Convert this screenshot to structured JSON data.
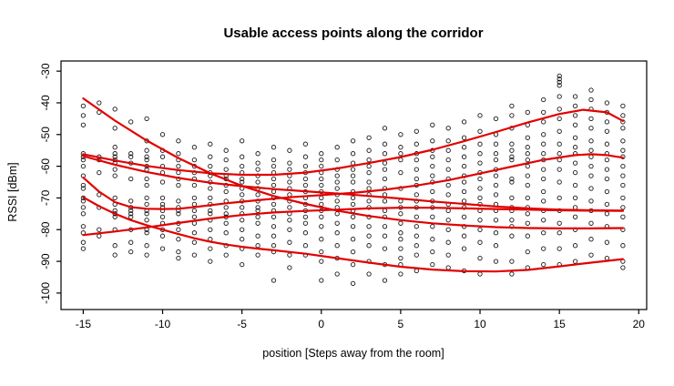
{
  "title": "Usable access points along the corridor",
  "chart_data": {
    "type": "scatter",
    "title": "Usable access points along the corridor",
    "xlabel": "position [Steps away from the room]",
    "ylabel": "RSSI [dBm]",
    "xlim": [
      -16.4,
      20.5
    ],
    "ylim": [
      -105.2,
      -26.8
    ],
    "xticks": [
      -15,
      -10,
      -5,
      0,
      5,
      10,
      15,
      20
    ],
    "yticks": [
      -100,
      -90,
      -80,
      -70,
      -60,
      -50,
      -40,
      -30
    ],
    "grid": false,
    "legend": "none",
    "point_color": "#1a1a1a",
    "line_color": "#e10000",
    "box_color": "#000000",
    "scatter": [
      {
        "x": -15,
        "ys": [
          -41,
          -44,
          -47,
          -56,
          -57,
          -58,
          -60,
          -63,
          -66,
          -67,
          -70,
          -71,
          -73,
          -75,
          -79,
          -81,
          -84,
          -86
        ]
      },
      {
        "x": -14,
        "ys": [
          -40,
          -43,
          -57,
          -58,
          -62,
          -69,
          -73,
          -80,
          -82
        ]
      },
      {
        "x": -13,
        "ys": [
          -42,
          -48,
          -54,
          -56,
          -57,
          -58,
          -59,
          -61,
          -63,
          -70,
          -72,
          -74,
          -75,
          -76,
          -80,
          -85,
          -88
        ]
      },
      {
        "x": -12,
        "ys": [
          -46,
          -56,
          -57,
          -59,
          -64,
          -71,
          -73,
          -74,
          -75,
          -76,
          -80,
          -84,
          -87
        ]
      },
      {
        "x": -11,
        "ys": [
          -45,
          -52,
          -55,
          -57,
          -58,
          -60,
          -61,
          -64,
          -66,
          -70,
          -72,
          -74,
          -75,
          -77,
          -80,
          -81,
          -85,
          -88
        ]
      },
      {
        "x": -10,
        "ys": [
          -50,
          -55,
          -57,
          -60,
          -62,
          -65,
          -70,
          -72,
          -73,
          -74,
          -76,
          -78,
          -80,
          -82,
          -86
        ]
      },
      {
        "x": -9,
        "ys": [
          -52,
          -56,
          -58,
          -60,
          -62,
          -64,
          -66,
          -71,
          -73,
          -74,
          -75,
          -78,
          -80,
          -83,
          -87,
          -89
        ]
      },
      {
        "x": -8,
        "ys": [
          -54,
          -58,
          -60,
          -62,
          -64,
          -66,
          -70,
          -72,
          -74,
          -76,
          -78,
          -81,
          -84,
          -88
        ]
      },
      {
        "x": -7,
        "ys": [
          -53,
          -57,
          -60,
          -62,
          -63,
          -65,
          -67,
          -70,
          -72,
          -74,
          -75,
          -77,
          -80,
          -83,
          -86,
          -90
        ]
      },
      {
        "x": -6,
        "ys": [
          -55,
          -58,
          -61,
          -63,
          -64,
          -66,
          -68,
          -71,
          -73,
          -75,
          -76,
          -78,
          -81,
          -85,
          -88
        ]
      },
      {
        "x": -5,
        "ys": [
          -52,
          -57,
          -60,
          -62,
          -64,
          -65,
          -67,
          -69,
          -71,
          -73,
          -75,
          -77,
          -80,
          -83,
          -86,
          -91
        ]
      },
      {
        "x": -4,
        "ys": [
          -56,
          -59,
          -61,
          -63,
          -65,
          -67,
          -69,
          -71,
          -73,
          -74,
          -76,
          -78,
          -82,
          -85,
          -88
        ]
      },
      {
        "x": -3,
        "ys": [
          -54,
          -58,
          -60,
          -62,
          -64,
          -66,
          -68,
          -70,
          -72,
          -74,
          -76,
          -79,
          -82,
          -85,
          -87,
          -96
        ]
      },
      {
        "x": -2,
        "ys": [
          -55,
          -59,
          -61,
          -63,
          -65,
          -67,
          -69,
          -71,
          -73,
          -75,
          -77,
          -80,
          -84,
          -88,
          -92
        ]
      },
      {
        "x": -1,
        "ys": [
          -53,
          -57,
          -60,
          -62,
          -64,
          -66,
          -68,
          -70,
          -72,
          -74,
          -76,
          -78,
          -81,
          -85,
          -88
        ]
      },
      {
        "x": 0,
        "ys": [
          -56,
          -58,
          -60,
          -62,
          -64,
          -66,
          -68,
          -70,
          -72,
          -74,
          -76,
          -79,
          -83,
          -87,
          -90,
          -96
        ]
      },
      {
        "x": 1,
        "ys": [
          -54,
          -58,
          -61,
          -63,
          -65,
          -67,
          -69,
          -71,
          -73,
          -75,
          -78,
          -81,
          -85,
          -89,
          -94
        ]
      },
      {
        "x": 2,
        "ys": [
          -52,
          -56,
          -59,
          -61,
          -63,
          -65,
          -68,
          -70,
          -72,
          -74,
          -76,
          -79,
          -83,
          -87,
          -91,
          -97
        ]
      },
      {
        "x": 3,
        "ys": [
          -51,
          -55,
          -58,
          -60,
          -62,
          -65,
          -67,
          -69,
          -71,
          -73,
          -76,
          -79,
          -82,
          -85,
          -90,
          -94
        ]
      },
      {
        "x": 4,
        "ys": [
          -48,
          -53,
          -56,
          -59,
          -61,
          -64,
          -67,
          -69,
          -71,
          -74,
          -76,
          -79,
          -82,
          -86,
          -91,
          -96
        ]
      },
      {
        "x": 5,
        "ys": [
          -50,
          -54,
          -56,
          -58,
          -62,
          -67,
          -71,
          -73,
          -75,
          -78,
          -81,
          -83,
          -86,
          -89,
          -91,
          -94
        ]
      },
      {
        "x": 6,
        "ys": [
          -49,
          -53,
          -56,
          -58,
          -61,
          -64,
          -66,
          -69,
          -71,
          -73,
          -76,
          -79,
          -82,
          -85,
          -88,
          -93
        ]
      },
      {
        "x": 7,
        "ys": [
          -47,
          -52,
          -55,
          -57,
          -60,
          -63,
          -65,
          -68,
          -71,
          -73,
          -76,
          -79,
          -83,
          -87,
          -91
        ]
      },
      {
        "x": 8,
        "ys": [
          -48,
          -52,
          -55,
          -58,
          -61,
          -64,
          -66,
          -69,
          -72,
          -74,
          -77,
          -80,
          -84,
          -88,
          -92
        ]
      },
      {
        "x": 9,
        "ys": [
          -46,
          -51,
          -54,
          -57,
          -60,
          -63,
          -65,
          -68,
          -71,
          -73,
          -76,
          -79,
          -82,
          -86,
          -93
        ]
      },
      {
        "x": 10,
        "ys": [
          -44,
          -49,
          -53,
          -56,
          -59,
          -62,
          -64,
          -67,
          -70,
          -72,
          -74,
          -77,
          -80,
          -84,
          -89,
          -94
        ]
      },
      {
        "x": 11,
        "ys": [
          -45,
          -50,
          -53,
          -56,
          -58,
          -61,
          -63,
          -66,
          -69,
          -72,
          -74,
          -77,
          -81,
          -85,
          -90
        ]
      },
      {
        "x": 12,
        "ys": [
          -41,
          -44,
          -48,
          -53,
          -55,
          -57,
          -58,
          -64,
          -65,
          -70,
          -73,
          -74,
          -77,
          -79,
          -82,
          -90,
          -94
        ]
      },
      {
        "x": 13,
        "ys": [
          -43,
          -47,
          -51,
          -54,
          -56,
          -58,
          -60,
          -63,
          -66,
          -70,
          -73,
          -75,
          -78,
          -82,
          -87,
          -92
        ]
      },
      {
        "x": 14,
        "ys": [
          -39,
          -43,
          -46,
          -50,
          -53,
          -56,
          -58,
          -61,
          -64,
          -68,
          -71,
          -74,
          -77,
          -81,
          -86,
          -91
        ]
      },
      {
        "x": 15,
        "ys": [
          -31.5,
          -32.5,
          -33.5,
          -34.5,
          -38,
          -42,
          -45,
          -49,
          -53,
          -56,
          -58,
          -61,
          -65,
          -70,
          -74,
          -78,
          -81,
          -86,
          -91
        ]
      },
      {
        "x": 16,
        "ys": [
          -38,
          -41,
          -44,
          -47,
          -51,
          -54,
          -56,
          -59,
          -62,
          -66,
          -70,
          -73,
          -76,
          -80,
          -85,
          -90
        ]
      },
      {
        "x": 17,
        "ys": [
          -36,
          -39,
          -42,
          -45,
          -48,
          -52,
          -55,
          -57,
          -60,
          -63,
          -67,
          -71,
          -74,
          -78,
          -83,
          -88
        ]
      },
      {
        "x": 18,
        "ys": [
          -40,
          -43,
          -46,
          -49,
          -53,
          -56,
          -58,
          -61,
          -64,
          -68,
          -72,
          -75,
          -79,
          -84,
          -89
        ]
      },
      {
        "x": 19,
        "ys": [
          -41,
          -44,
          -46,
          -48,
          -52,
          -55,
          -57,
          -60,
          -63,
          -66,
          -70,
          -73,
          -76,
          -80,
          -85,
          -90,
          -92
        ]
      }
    ],
    "smooth_lines": [
      {
        "name": "ap1-loess",
        "points": [
          [
            -15,
            -38.6
          ],
          [
            -13,
            -45.6
          ],
          [
            -11,
            -51.9
          ],
          [
            -9,
            -57.4
          ],
          [
            -7,
            -62.2
          ],
          [
            -5,
            -66.2
          ],
          [
            -3,
            -69.4
          ],
          [
            -1,
            -71.9
          ],
          [
            1,
            -74
          ],
          [
            3,
            -75.7
          ],
          [
            5,
            -77
          ],
          [
            7,
            -78
          ],
          [
            9,
            -78.7
          ],
          [
            11,
            -79.2
          ],
          [
            13,
            -79.5
          ],
          [
            15,
            -79.6
          ],
          [
            17,
            -79.6
          ],
          [
            19,
            -79.5
          ]
        ]
      },
      {
        "name": "ap2-loess",
        "points": [
          [
            -15,
            -56.2
          ],
          [
            -13,
            -58.2
          ],
          [
            -11,
            -59.9
          ],
          [
            -9,
            -61.2
          ],
          [
            -7,
            -62.2
          ],
          [
            -5,
            -62.7
          ],
          [
            -3,
            -62.7
          ],
          [
            -1,
            -62
          ],
          [
            1,
            -60.7
          ],
          [
            3,
            -59
          ],
          [
            5,
            -57.1
          ],
          [
            7,
            -54.8
          ],
          [
            9,
            -52.1
          ],
          [
            11,
            -49.2
          ],
          [
            13,
            -46.2
          ],
          [
            15,
            -43.5
          ],
          [
            16.5,
            -42.2
          ],
          [
            18,
            -43
          ],
          [
            19,
            -45.7
          ]
        ]
      },
      {
        "name": "ap3-loess",
        "points": [
          [
            -15,
            -56.8
          ],
          [
            -13,
            -59.5
          ],
          [
            -11,
            -61.8
          ],
          [
            -9,
            -63.7
          ],
          [
            -7,
            -65.2
          ],
          [
            -5,
            -66.3
          ],
          [
            -3,
            -67.2
          ],
          [
            -1,
            -67.9
          ],
          [
            1,
            -68.6
          ],
          [
            3,
            -69.4
          ],
          [
            5,
            -70.2
          ],
          [
            7,
            -71.1
          ],
          [
            9,
            -71.9
          ],
          [
            11,
            -72.7
          ],
          [
            13,
            -73.3
          ],
          [
            15,
            -73.7
          ],
          [
            17,
            -73.9
          ],
          [
            19,
            -74
          ]
        ]
      },
      {
        "name": "ap4-loess",
        "points": [
          [
            -15,
            -63.6
          ],
          [
            -14,
            -68
          ],
          [
            -13,
            -71.3
          ],
          [
            -12,
            -72.9
          ],
          [
            -11,
            -73.4
          ],
          [
            -10,
            -73.5
          ],
          [
            -9,
            -73.4
          ],
          [
            -8,
            -72.9
          ],
          [
            -6,
            -71.7
          ],
          [
            -4,
            -70.7
          ],
          [
            -2,
            -69.8
          ],
          [
            0,
            -69.1
          ],
          [
            2,
            -68.4
          ],
          [
            4,
            -67.4
          ],
          [
            6,
            -66.1
          ],
          [
            8,
            -64.4
          ],
          [
            10,
            -62.3
          ],
          [
            12,
            -60.1
          ],
          [
            14,
            -58
          ],
          [
            16,
            -56.5
          ],
          [
            17,
            -56.2
          ],
          [
            18,
            -56.5
          ],
          [
            19,
            -57.3
          ]
        ]
      },
      {
        "name": "ap5-loess",
        "points": [
          [
            -15,
            -69.8
          ],
          [
            -14,
            -72.6
          ],
          [
            -13,
            -75
          ],
          [
            -12,
            -77
          ],
          [
            -11,
            -78.6
          ],
          [
            -10,
            -80
          ],
          [
            -9,
            -81.4
          ],
          [
            -8,
            -82.7
          ],
          [
            -7,
            -83.8
          ],
          [
            -6,
            -84.7
          ],
          [
            -5,
            -85.4
          ],
          [
            -4,
            -86
          ],
          [
            -3,
            -86.5
          ],
          [
            -1,
            -87.6
          ],
          [
            1,
            -89
          ],
          [
            3,
            -90.4
          ],
          [
            5,
            -91.7
          ],
          [
            7,
            -92.6
          ],
          [
            9,
            -93.1
          ],
          [
            11,
            -93.2
          ],
          [
            13,
            -92.7
          ],
          [
            15,
            -91.6
          ],
          [
            17,
            -90.4
          ],
          [
            19,
            -89.3
          ]
        ]
      },
      {
        "name": "ap6-loess",
        "points": [
          [
            -15,
            -81.7
          ],
          [
            -13,
            -80.6
          ],
          [
            -11,
            -79.3
          ],
          [
            -9,
            -77.9
          ],
          [
            -7,
            -76.5
          ],
          [
            -5,
            -75.4
          ],
          [
            -3,
            -74.6
          ],
          [
            -1,
            -74.1
          ],
          [
            1,
            -73.7
          ],
          [
            3,
            -73.3
          ],
          [
            5,
            -73.1
          ],
          [
            7,
            -73.1
          ],
          [
            9,
            -73.3
          ],
          [
            11,
            -73.5
          ],
          [
            13,
            -73.7
          ],
          [
            15,
            -73.9
          ],
          [
            17,
            -74
          ],
          [
            19,
            -74.1
          ]
        ]
      }
    ]
  }
}
